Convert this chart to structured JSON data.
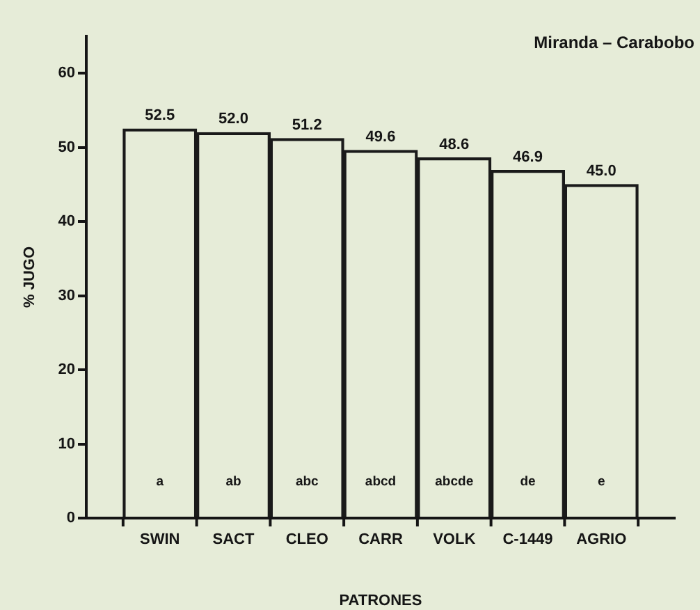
{
  "chart_data": {
    "type": "bar",
    "title": "Miranda – Carabobo",
    "xlabel": "PATRONES",
    "ylabel": "% JUGO",
    "categories": [
      "SWIN",
      "SACT",
      "CLEO",
      "CARR",
      "VOLK",
      "C-1449",
      "AGRIO"
    ],
    "values": [
      52.5,
      52.0,
      51.2,
      49.6,
      48.6,
      46.9,
      45.0
    ],
    "value_labels": [
      "52.5",
      "52.0",
      "51.2",
      "49.6",
      "48.6",
      "46.9",
      "45.0"
    ],
    "color": "#1a1a1a",
    "ylim": [
      0,
      65
    ],
    "yticks": [
      0,
      10,
      20,
      30,
      40,
      50,
      60
    ],
    "annotations": [
      "a",
      "ab",
      "abc",
      "abcd",
      "abcde",
      "de",
      "e"
    ]
  }
}
